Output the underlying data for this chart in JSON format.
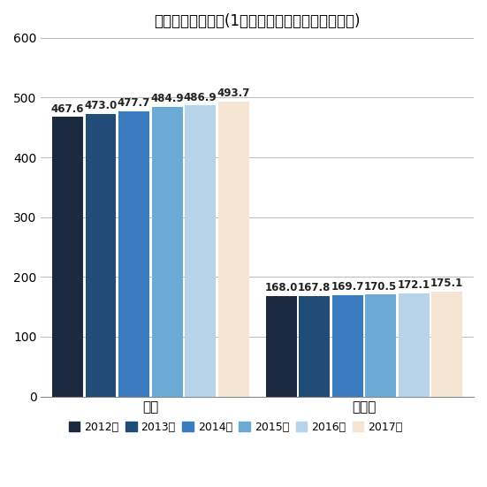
{
  "title": "給与・手当＋賞与(1年勤続者、平均、年間、万円)",
  "categories": [
    "正規",
    "非正規"
  ],
  "years": [
    "2012年",
    "2013年",
    "2014年",
    "2015年",
    "2016年",
    "2017年"
  ],
  "values": {
    "正規": [
      467.6,
      473.0,
      477.7,
      484.9,
      486.9,
      493.7
    ],
    "非正規": [
      168.0,
      167.8,
      169.7,
      170.5,
      172.1,
      175.1
    ]
  },
  "colors": [
    "#1b2a3e",
    "#1f4d78",
    "#3a7abf",
    "#6aaad4",
    "#b8d4ea",
    "#f5e6d3"
  ],
  "ylim": [
    0,
    600
  ],
  "yticks": [
    0,
    100,
    200,
    300,
    400,
    500,
    600
  ],
  "background_color": "#ffffff",
  "grid_color": "#bbbbbb",
  "title_fontsize": 12,
  "label_fontsize": 8.5,
  "tick_fontsize": 10,
  "legend_fontsize": 9,
  "cat_fontsize": 11,
  "group_centers": [
    0.38,
    1.12
  ],
  "bar_width": 0.115,
  "xlim": [
    0.0,
    1.5
  ]
}
